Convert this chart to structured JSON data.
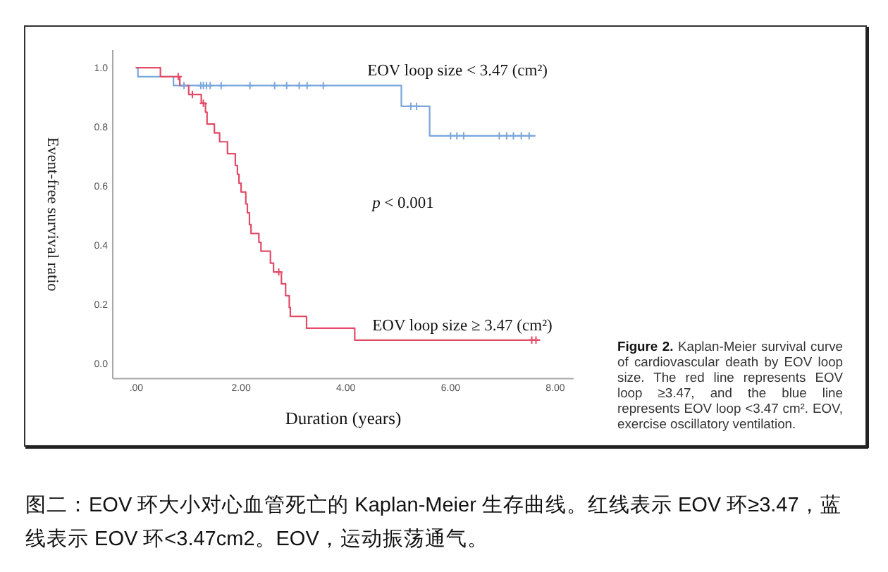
{
  "chart_data": {
    "type": "step",
    "xlabel": "Duration (years)",
    "ylabel": "Event-free survival ratio",
    "xlim": [
      -0.45,
      8.35
    ],
    "ylim": [
      -0.05,
      1.06
    ],
    "xticks": [
      {
        "value": 0,
        "label": ".00"
      },
      {
        "value": 2,
        "label": "2.00"
      },
      {
        "value": 4,
        "label": "4.00"
      },
      {
        "value": 6,
        "label": "6.00"
      },
      {
        "value": 8,
        "label": "8.00"
      }
    ],
    "yticks": [
      {
        "value": 0,
        "label": "0.0"
      },
      0.2,
      0.4,
      0.6,
      0.8,
      {
        "value": 1,
        "label": "1.0"
      }
    ],
    "series": [
      {
        "type": "step",
        "name": "EOV loop size < 3.47 (cm²)",
        "color": "#7aa6dc",
        "x": [
          0,
          0.03,
          0.71,
          5.06,
          5.6,
          7.61
        ],
        "values": [
          1.0,
          0.97,
          0.94,
          0.87,
          0.77,
          0.77
        ]
      },
      {
        "type": "step",
        "name": "EOV loop size ≥ 3.47 (cm²)",
        "color": "#e24a66",
        "x": [
          0,
          0.46,
          0.83,
          1.0,
          1.24,
          1.32,
          1.35,
          1.49,
          1.59,
          1.74,
          1.89,
          1.93,
          1.96,
          2.0,
          2.09,
          2.12,
          2.16,
          2.19,
          2.34,
          2.38,
          2.56,
          2.62,
          2.77,
          2.85,
          2.92,
          2.94,
          3.25,
          4.17,
          7.7
        ],
        "values": [
          1.0,
          0.97,
          0.94,
          0.91,
          0.88,
          0.85,
          0.81,
          0.78,
          0.75,
          0.71,
          0.67,
          0.64,
          0.61,
          0.58,
          0.54,
          0.51,
          0.47,
          0.44,
          0.41,
          0.38,
          0.34,
          0.31,
          0.27,
          0.23,
          0.19,
          0.16,
          0.12,
          0.08,
          0.08
        ]
      },
      {
        "type": "scatter",
        "marker": "cross",
        "color": "#7aa6dc",
        "x": [
          0.91,
          1.23,
          1.28,
          1.34,
          1.41,
          1.62,
          2.17,
          2.64,
          2.87,
          3.11,
          3.26,
          3.57,
          5.24,
          5.35,
          6.0,
          6.12,
          6.25,
          6.93,
          7.07,
          7.2,
          7.35,
          7.5
        ],
        "values": [
          0.94,
          0.94,
          0.94,
          0.94,
          0.94,
          0.94,
          0.94,
          0.94,
          0.94,
          0.94,
          0.94,
          0.94,
          0.87,
          0.87,
          0.77,
          0.77,
          0.77,
          0.77,
          0.77,
          0.77,
          0.77,
          0.77
        ]
      },
      {
        "type": "scatter",
        "marker": "cross",
        "color": "#e24a66",
        "x": [
          0.8,
          1.07,
          1.28,
          2.72,
          7.55,
          7.63
        ],
        "values": [
          0.97,
          0.91,
          0.88,
          0.31,
          0.08,
          0.08
        ]
      }
    ],
    "annotations": [
      "p < 0.001",
      "Figure 2. Kaplan-Meier survival curve of cardiovascular death by EOV loop size. The red line represents EOV loop ≥3.47, and the blue line represents EOV loop <3.47 cm². EOV, exercise oscillatory ventilation.",
      "图二：EOV 环大小对心血管死亡的 Kaplan-Meier 生存曲线。红线表示 EOV 环≥3.47，蓝线表示 EOV 环<3.47cm2。EOV，运动振荡通气。"
    ]
  }
}
